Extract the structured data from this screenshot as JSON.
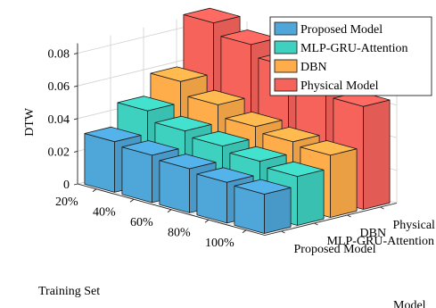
{
  "chart_data": {
    "type": "bar",
    "title": "",
    "xlabel": "Training Set",
    "ylabel": "Model",
    "zlabel": "DTW",
    "categories": [
      "20%",
      "40%",
      "60%",
      "80%",
      "100%"
    ],
    "zlim": [
      0,
      0.08
    ],
    "zticks": [
      "0",
      "0.02",
      "0.04",
      "0.06",
      "0.08"
    ],
    "grid": true,
    "legend_position": "top-right",
    "series": [
      {
        "name": "Proposed Model",
        "color": "#4ea6d9",
        "values": [
          0.031,
          0.029,
          0.027,
          0.025,
          0.024
        ]
      },
      {
        "name": "MLP-GRU-Attention",
        "color": "#3ed1c0",
        "values": [
          0.045,
          0.039,
          0.036,
          0.033,
          0.03
        ]
      },
      {
        "name": "DBN",
        "color": "#ffad4a",
        "values": [
          0.058,
          0.05,
          0.043,
          0.04,
          0.038
        ]
      },
      {
        "name": "Physical Model",
        "color": "#f6635b",
        "values": [
          0.089,
          0.082,
          0.075,
          0.069,
          0.063
        ]
      }
    ]
  }
}
